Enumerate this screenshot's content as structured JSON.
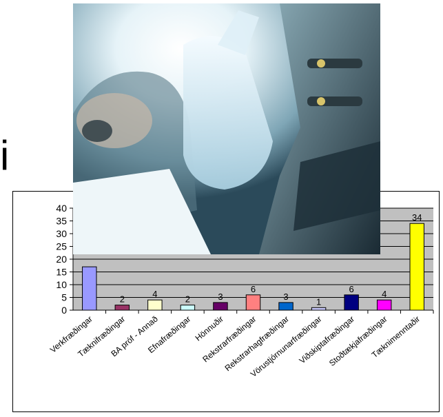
{
  "heading_fragment": "i",
  "chart_data": {
    "type": "bar",
    "categories": [
      "Verkfræðingar",
      "Tæknifræðingar",
      "BA próf - Annað",
      "Efnafræðingar",
      "Hönnuðir",
      "Rekstrarfræðingar",
      "Rekstrarhagfræðingar",
      "Vörustjórnunarfræðingar",
      "Viðskiptafræðingar",
      "Stoðtækjafræðingar",
      "Tæknimenntaðir"
    ],
    "values": [
      17,
      2,
      4,
      2,
      3,
      6,
      3,
      1,
      6,
      4,
      34
    ],
    "data_labels": [
      "",
      "2",
      "4",
      "2",
      "3",
      "6",
      "3",
      "1",
      "6",
      "4",
      "34"
    ],
    "bar_colors": [
      "#9999ff",
      "#993366",
      "#ffffcc",
      "#ccffff",
      "#660066",
      "#ff8080",
      "#0066cc",
      "#ccccff",
      "#000080",
      "#ff00ff",
      "#ffff00"
    ],
    "yticks": [
      "0",
      "5",
      "10",
      "15",
      "20",
      "25",
      "30",
      "35",
      "40"
    ],
    "ylim": [
      0,
      40
    ],
    "grid": true,
    "plot_background": "#c0c0c0",
    "title": "",
    "xlabel": "",
    "ylabel": ""
  },
  "photo": {
    "icon": "scientist-photo"
  }
}
